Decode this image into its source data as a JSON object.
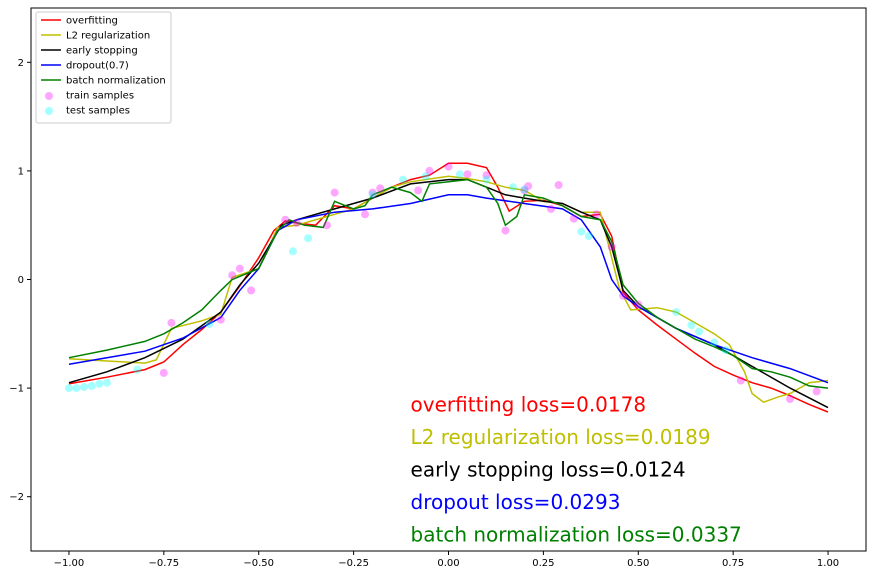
{
  "chart_data": {
    "type": "line",
    "xlim": [
      -1.1,
      1.1
    ],
    "ylim": [
      -2.5,
      2.5
    ],
    "x_ticks": [
      -1.0,
      -0.75,
      -0.5,
      -0.25,
      0.0,
      0.25,
      0.5,
      0.75,
      1.0
    ],
    "x_tick_labels": [
      "−1.00",
      "−0.75",
      "−0.50",
      "−0.25",
      "0.00",
      "0.25",
      "0.50",
      "0.75",
      "1.00"
    ],
    "y_ticks": [
      -2,
      -1,
      0,
      1,
      2
    ],
    "y_tick_labels": [
      "−2",
      "−1",
      "0",
      "1",
      "2"
    ],
    "grid": false,
    "legend_placement": "upper-left",
    "legend": [
      {
        "label": "overfitting",
        "kind": "line",
        "color": "#ff0000"
      },
      {
        "label": "L2 regularization",
        "kind": "line",
        "color": "#bfbf00"
      },
      {
        "label": "early stopping",
        "kind": "line",
        "color": "#000000"
      },
      {
        "label": "dropout(0.7)",
        "kind": "line",
        "color": "#0000ff"
      },
      {
        "label": "batch normalization",
        "kind": "line",
        "color": "#008000"
      },
      {
        "label": "train samples",
        "kind": "scatter",
        "color": "#ff00ff"
      },
      {
        "label": "test samples",
        "kind": "scatter",
        "color": "#00ffff"
      }
    ],
    "series": [
      {
        "name": "overfitting",
        "color": "#ff0000",
        "points": [
          [
            -1.0,
            -0.96
          ],
          [
            -0.9,
            -0.9
          ],
          [
            -0.8,
            -0.83
          ],
          [
            -0.75,
            -0.76
          ],
          [
            -0.7,
            -0.6
          ],
          [
            -0.65,
            -0.46
          ],
          [
            -0.6,
            -0.3
          ],
          [
            -0.55,
            -0.06
          ],
          [
            -0.5,
            0.2
          ],
          [
            -0.46,
            0.45
          ],
          [
            -0.43,
            0.54
          ],
          [
            -0.4,
            0.52
          ],
          [
            -0.35,
            0.5
          ],
          [
            -0.3,
            0.68
          ],
          [
            -0.25,
            0.65
          ],
          [
            -0.2,
            0.75
          ],
          [
            -0.15,
            0.85
          ],
          [
            -0.1,
            0.92
          ],
          [
            -0.05,
            0.96
          ],
          [
            0.0,
            1.07
          ],
          [
            0.05,
            1.07
          ],
          [
            0.1,
            1.03
          ],
          [
            0.13,
            0.85
          ],
          [
            0.16,
            0.63
          ],
          [
            0.2,
            0.72
          ],
          [
            0.25,
            0.73
          ],
          [
            0.3,
            0.68
          ],
          [
            0.35,
            0.58
          ],
          [
            0.4,
            0.6
          ],
          [
            0.43,
            0.4
          ],
          [
            0.46,
            -0.12
          ],
          [
            0.5,
            -0.28
          ],
          [
            0.55,
            -0.42
          ],
          [
            0.6,
            -0.55
          ],
          [
            0.65,
            -0.68
          ],
          [
            0.7,
            -0.8
          ],
          [
            0.75,
            -0.88
          ],
          [
            0.8,
            -0.95
          ],
          [
            0.85,
            -1.0
          ],
          [
            0.9,
            -1.07
          ],
          [
            0.95,
            -1.15
          ],
          [
            1.0,
            -1.22
          ]
        ]
      },
      {
        "name": "L2 regularization",
        "color": "#bfbf00",
        "points": [
          [
            -1.0,
            -0.73
          ],
          [
            -0.9,
            -0.75
          ],
          [
            -0.8,
            -0.77
          ],
          [
            -0.77,
            -0.74
          ],
          [
            -0.73,
            -0.45
          ],
          [
            -0.65,
            -0.38
          ],
          [
            -0.6,
            -0.32
          ],
          [
            -0.57,
            0.02
          ],
          [
            -0.5,
            0.1
          ],
          [
            -0.45,
            0.48
          ],
          [
            -0.4,
            0.5
          ],
          [
            -0.3,
            0.6
          ],
          [
            -0.25,
            0.65
          ],
          [
            -0.2,
            0.75
          ],
          [
            -0.15,
            0.85
          ],
          [
            -0.1,
            0.9
          ],
          [
            0.0,
            0.95
          ],
          [
            0.05,
            0.93
          ],
          [
            0.1,
            0.9
          ],
          [
            0.15,
            0.85
          ],
          [
            0.2,
            0.82
          ],
          [
            0.25,
            0.72
          ],
          [
            0.3,
            0.7
          ],
          [
            0.35,
            0.62
          ],
          [
            0.4,
            0.62
          ],
          [
            0.45,
            -0.08
          ],
          [
            0.48,
            -0.28
          ],
          [
            0.52,
            -0.27
          ],
          [
            0.55,
            -0.26
          ],
          [
            0.6,
            -0.3
          ],
          [
            0.65,
            -0.4
          ],
          [
            0.7,
            -0.5
          ],
          [
            0.74,
            -0.6
          ],
          [
            0.78,
            -0.85
          ],
          [
            0.8,
            -1.05
          ],
          [
            0.83,
            -1.13
          ],
          [
            0.87,
            -1.08
          ],
          [
            0.9,
            -1.05
          ],
          [
            0.95,
            -0.95
          ],
          [
            1.0,
            -0.93
          ]
        ]
      },
      {
        "name": "early stopping",
        "color": "#000000",
        "points": [
          [
            -1.0,
            -0.95
          ],
          [
            -0.9,
            -0.85
          ],
          [
            -0.8,
            -0.72
          ],
          [
            -0.7,
            -0.55
          ],
          [
            -0.6,
            -0.3
          ],
          [
            -0.55,
            -0.05
          ],
          [
            -0.5,
            0.15
          ],
          [
            -0.44,
            0.5
          ],
          [
            -0.4,
            0.55
          ],
          [
            -0.3,
            0.65
          ],
          [
            -0.2,
            0.75
          ],
          [
            -0.1,
            0.88
          ],
          [
            0.0,
            0.92
          ],
          [
            0.05,
            0.92
          ],
          [
            0.1,
            0.85
          ],
          [
            0.15,
            0.78
          ],
          [
            0.2,
            0.75
          ],
          [
            0.25,
            0.72
          ],
          [
            0.3,
            0.7
          ],
          [
            0.35,
            0.62
          ],
          [
            0.4,
            0.55
          ],
          [
            0.43,
            0.3
          ],
          [
            0.46,
            -0.1
          ],
          [
            0.5,
            -0.25
          ],
          [
            0.6,
            -0.45
          ],
          [
            0.7,
            -0.6
          ],
          [
            0.8,
            -0.8
          ],
          [
            0.9,
            -1.0
          ],
          [
            1.0,
            -1.18
          ]
        ]
      },
      {
        "name": "dropout(0.7)",
        "color": "#0000ff",
        "points": [
          [
            -1.0,
            -0.78
          ],
          [
            -0.9,
            -0.72
          ],
          [
            -0.8,
            -0.66
          ],
          [
            -0.7,
            -0.54
          ],
          [
            -0.6,
            -0.35
          ],
          [
            -0.55,
            -0.1
          ],
          [
            -0.5,
            0.1
          ],
          [
            -0.45,
            0.45
          ],
          [
            -0.4,
            0.55
          ],
          [
            -0.3,
            0.62
          ],
          [
            -0.2,
            0.65
          ],
          [
            -0.1,
            0.7
          ],
          [
            0.0,
            0.78
          ],
          [
            0.05,
            0.78
          ],
          [
            0.1,
            0.75
          ],
          [
            0.2,
            0.7
          ],
          [
            0.3,
            0.65
          ],
          [
            0.35,
            0.55
          ],
          [
            0.4,
            0.3
          ],
          [
            0.43,
            0.0
          ],
          [
            0.46,
            -0.15
          ],
          [
            0.5,
            -0.25
          ],
          [
            0.6,
            -0.45
          ],
          [
            0.7,
            -0.6
          ],
          [
            0.8,
            -0.72
          ],
          [
            0.9,
            -0.82
          ],
          [
            1.0,
            -0.95
          ]
        ]
      },
      {
        "name": "batch normalization",
        "color": "#008000",
        "points": [
          [
            -1.0,
            -0.72
          ],
          [
            -0.9,
            -0.65
          ],
          [
            -0.8,
            -0.57
          ],
          [
            -0.75,
            -0.5
          ],
          [
            -0.7,
            -0.4
          ],
          [
            -0.65,
            -0.28
          ],
          [
            -0.6,
            -0.1
          ],
          [
            -0.57,
            0.0
          ],
          [
            -0.5,
            0.1
          ],
          [
            -0.45,
            0.45
          ],
          [
            -0.42,
            0.55
          ],
          [
            -0.38,
            0.5
          ],
          [
            -0.33,
            0.48
          ],
          [
            -0.3,
            0.72
          ],
          [
            -0.25,
            0.65
          ],
          [
            -0.22,
            0.68
          ],
          [
            -0.2,
            0.78
          ],
          [
            -0.15,
            0.85
          ],
          [
            -0.1,
            0.8
          ],
          [
            -0.07,
            0.72
          ],
          [
            -0.05,
            0.88
          ],
          [
            0.0,
            0.9
          ],
          [
            0.05,
            0.92
          ],
          [
            0.1,
            0.85
          ],
          [
            0.13,
            0.7
          ],
          [
            0.15,
            0.5
          ],
          [
            0.18,
            0.58
          ],
          [
            0.2,
            0.78
          ],
          [
            0.25,
            0.75
          ],
          [
            0.3,
            0.68
          ],
          [
            0.35,
            0.58
          ],
          [
            0.4,
            0.55
          ],
          [
            0.43,
            0.35
          ],
          [
            0.46,
            -0.05
          ],
          [
            0.5,
            -0.22
          ],
          [
            0.55,
            -0.35
          ],
          [
            0.6,
            -0.45
          ],
          [
            0.65,
            -0.55
          ],
          [
            0.7,
            -0.62
          ],
          [
            0.75,
            -0.7
          ],
          [
            0.8,
            -0.82
          ],
          [
            0.85,
            -0.85
          ],
          [
            0.9,
            -0.9
          ],
          [
            0.95,
            -0.98
          ],
          [
            1.0,
            -1.0
          ]
        ]
      }
    ],
    "scatter": [
      {
        "name": "train samples",
        "color": "#ff00ff",
        "points": [
          [
            -0.73,
            -0.4
          ],
          [
            -0.75,
            -0.86
          ],
          [
            -0.6,
            -0.37
          ],
          [
            -0.57,
            0.04
          ],
          [
            -0.55,
            0.1
          ],
          [
            -0.52,
            -0.1
          ],
          [
            -0.43,
            0.55
          ],
          [
            -0.4,
            0.52
          ],
          [
            -0.32,
            0.5
          ],
          [
            -0.3,
            0.8
          ],
          [
            -0.22,
            0.6
          ],
          [
            -0.2,
            0.8
          ],
          [
            -0.18,
            0.84
          ],
          [
            -0.08,
            0.82
          ],
          [
            -0.05,
            1.0
          ],
          [
            0.0,
            1.04
          ],
          [
            0.05,
            0.97
          ],
          [
            0.1,
            0.96
          ],
          [
            0.15,
            0.45
          ],
          [
            0.2,
            0.82
          ],
          [
            0.21,
            0.86
          ],
          [
            0.27,
            0.65
          ],
          [
            0.29,
            0.87
          ],
          [
            0.33,
            0.56
          ],
          [
            0.39,
            0.6
          ],
          [
            0.43,
            0.3
          ],
          [
            0.46,
            -0.15
          ],
          [
            0.5,
            -0.23
          ],
          [
            0.77,
            -0.93
          ],
          [
            0.9,
            -1.1
          ],
          [
            0.97,
            -1.03
          ]
        ]
      },
      {
        "name": "test samples",
        "color": "#00ffff",
        "points": [
          [
            -1.0,
            -1.0
          ],
          [
            -0.98,
            -1.0
          ],
          [
            -0.96,
            -0.99
          ],
          [
            -0.94,
            -0.98
          ],
          [
            -0.92,
            -0.96
          ],
          [
            -0.9,
            -0.95
          ],
          [
            -0.82,
            -0.83
          ],
          [
            -0.63,
            -0.41
          ],
          [
            -0.41,
            0.26
          ],
          [
            -0.37,
            0.38
          ],
          [
            -0.2,
            0.78
          ],
          [
            -0.12,
            0.92
          ],
          [
            -0.06,
            0.95
          ],
          [
            0.03,
            0.97
          ],
          [
            0.1,
            0.92
          ],
          [
            0.17,
            0.85
          ],
          [
            0.2,
            0.83
          ],
          [
            0.35,
            0.44
          ],
          [
            0.37,
            0.4
          ],
          [
            0.6,
            -0.3
          ],
          [
            0.64,
            -0.42
          ],
          [
            0.66,
            -0.48
          ],
          [
            0.7,
            -0.58
          ],
          [
            0.73,
            -0.65
          ]
        ]
      }
    ],
    "annotations": [
      {
        "text": "overfitting loss=0.0178",
        "color": "#ff0000",
        "x": -0.1,
        "y": -1.15
      },
      {
        "text": "L2 regularization loss=0.0189",
        "color": "#bfbf00",
        "x": -0.1,
        "y": -1.45
      },
      {
        "text": "early stopping loss=0.0124",
        "color": "#000000",
        "x": -0.1,
        "y": -1.75
      },
      {
        "text": "dropout loss=0.0293",
        "color": "#0000ff",
        "x": -0.1,
        "y": -2.05
      },
      {
        "text": "batch normalization loss=0.0337",
        "color": "#008000",
        "x": -0.1,
        "y": -2.35
      }
    ]
  }
}
